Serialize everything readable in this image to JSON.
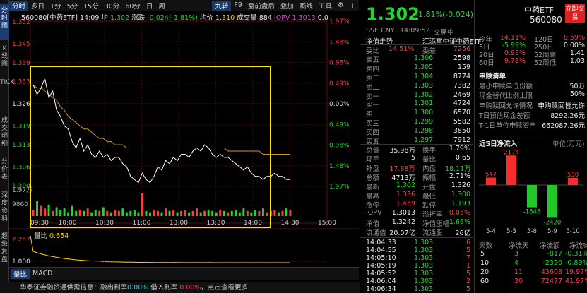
{
  "left_tabs": [
    {
      "label": "分时图",
      "active": true
    },
    {
      "label": "K线图",
      "active": false
    },
    {
      "label": "TICK",
      "active": false
    },
    {
      "label": "成交明细",
      "active": false
    },
    {
      "label": "分价表",
      "active": false
    },
    {
      "label": "深度资料",
      "active": false
    },
    {
      "label": "超级复盘",
      "active": false
    }
  ],
  "toolbar": {
    "periods": [
      "分时",
      "多日",
      "1分",
      "5分",
      "15分",
      "30分",
      "60分",
      "日",
      "周"
    ],
    "right_items": [
      "九转",
      "F9",
      "盘前盘后",
      "叠加",
      "画线",
      "工具"
    ],
    "icons": [
      "settings-icon",
      "plus-icon"
    ]
  },
  "chart_header": {
    "code": "560080[中药ETF]",
    "time": "14:09",
    "price_label": "均",
    "price": "1.302",
    "change_label": "涨跌",
    "change": "-0.024(-1.81%)",
    "avg_label": "均价",
    "avg": "1.310",
    "vol_label": "成交量",
    "vol": "884",
    "iopv_label": "IOPV",
    "iopv": "1.3013",
    "iopv_change": "0.0"
  },
  "chart_data": {
    "type": "line",
    "x_ticks": [
      "09:30",
      "10:00",
      "10:30",
      "11:00",
      "13:00",
      "13:30",
      "14:00",
      "14:30",
      "15:00"
    ],
    "y_ticks_left": [
      "1.352",
      "1.345",
      "1.339",
      "1.333",
      "1.326",
      "1.319",
      "1.313",
      "1.306",
      "1.300",
      "1.97万",
      "9860"
    ],
    "y_ticks_right": [
      "1.97%",
      "1.48%",
      "0.98%",
      "0.49%",
      "0.00%",
      "0.49%",
      "0.98%",
      "1.48%",
      "1.97%"
    ],
    "ylim": [
      1.2998,
      1.3522
    ],
    "prev_close": 1.326,
    "price_series": [
      1.332,
      1.329,
      1.331,
      1.334,
      1.328,
      1.33,
      1.324,
      1.322,
      1.319,
      1.318,
      1.314,
      1.312,
      1.315,
      1.311,
      1.313,
      1.31,
      1.309,
      1.311,
      1.309,
      1.31,
      1.308,
      1.309,
      1.309,
      1.307,
      1.306,
      1.303,
      1.302,
      1.301,
      1.304,
      1.302,
      1.301,
      1.303,
      1.306,
      1.305,
      1.308,
      1.307,
      1.309,
      1.308,
      1.31,
      1.31,
      1.309,
      1.311,
      1.312,
      1.311,
      1.313,
      1.312,
      1.31,
      1.309,
      1.31,
      1.309,
      1.309,
      1.308,
      1.307,
      1.306,
      1.305,
      1.306,
      1.304,
      1.303,
      1.303,
      1.302,
      1.303,
      1.303,
      1.304,
      1.303,
      1.303,
      1.302,
      1.302
    ],
    "avg_series": [
      1.332,
      1.331,
      1.331,
      1.33,
      1.329,
      1.328,
      1.327,
      1.325,
      1.324,
      1.322,
      1.321,
      1.32,
      1.319,
      1.318,
      1.318,
      1.317,
      1.316,
      1.315,
      1.315,
      1.314,
      1.314,
      1.313,
      1.313,
      1.313,
      1.312,
      1.312,
      1.312,
      1.312,
      1.312,
      1.312,
      1.312,
      1.312,
      1.312,
      1.312,
      1.312,
      1.312,
      1.312,
      1.312,
      1.312,
      1.312,
      1.312,
      1.312,
      1.312,
      1.312,
      1.312,
      1.312,
      1.312,
      1.312,
      1.312,
      1.312,
      1.311,
      1.311,
      1.311,
      1.311,
      1.311,
      1.311,
      1.311,
      1.311,
      1.311,
      1.31,
      1.31,
      1.31,
      1.31,
      1.31,
      1.31,
      1.31,
      1.31
    ],
    "volume_series": [
      5,
      12,
      8,
      6,
      9,
      4,
      7,
      5,
      6,
      3,
      8,
      4,
      5,
      4,
      6,
      3,
      5,
      4,
      7,
      4,
      3,
      5,
      4,
      6,
      3,
      4,
      5,
      3,
      18,
      4,
      3,
      5,
      4,
      3,
      6,
      4,
      5,
      3,
      4,
      5,
      3,
      4,
      6,
      3,
      4,
      5,
      4,
      3,
      5,
      4,
      3,
      4,
      5,
      3,
      6,
      4,
      3,
      5,
      4,
      6,
      3,
      4,
      5,
      3,
      4,
      6,
      5
    ],
    "macd_vol_label": "量比",
    "macd_vol_value": "0.654",
    "indicator_y_ticks": [
      "2.257",
      "1.000"
    ],
    "bottom_tabs": [
      "量比",
      "MACD"
    ]
  },
  "quote": {
    "price": "1.302",
    "change_pct": "-1.81%",
    "change": "(-0.024)",
    "name": "中药ETF",
    "code": "560080",
    "stock_btn": "立即交易",
    "exchange": "SSE CNY",
    "time": "14:09:52",
    "status": "交易中",
    "right_stats": [
      {
        "label": "今年",
        "value": "14.11%",
        "label2": "120日",
        "value2": "8.59%",
        "c1": "red",
        "c2": "red"
      },
      {
        "label": "5日",
        "value": "-5.99%",
        "label2": "250日",
        "value2": "0.00%",
        "c1": "green",
        "c2": "white"
      },
      {
        "label": "20日",
        "value": "0.93%",
        "label2": "52周高",
        "value2": "1.41",
        "c1": "red",
        "c2": "white"
      },
      {
        "label": "60日",
        "value": "9.78%",
        "label2": "52周低",
        "value2": "1.03",
        "c1": "red",
        "c2": "white"
      }
    ]
  },
  "net_trend": {
    "label": "净值走势",
    "fund_label": "汇添富中证中药ETF"
  },
  "order_book": {
    "weibi_label": "委比",
    "weibi": "14.51%",
    "weicha_label": "委差",
    "weicha": "7256",
    "asks": [
      {
        "label": "卖五",
        "price": "1.306",
        "vol": "2598"
      },
      {
        "label": "卖四",
        "price": "1.305",
        "vol": "159"
      },
      {
        "label": "卖三",
        "price": "1.304",
        "vol": "8774"
      },
      {
        "label": "卖二",
        "price": "1.303",
        "vol": "7382"
      },
      {
        "label": "卖一",
        "price": "1.302",
        "vol": "2469"
      }
    ],
    "bids": [
      {
        "label": "买一",
        "price": "1.301",
        "vol": "4724"
      },
      {
        "label": "买二",
        "price": "1.300",
        "vol": "6570"
      },
      {
        "label": "买三",
        "price": "1.299",
        "vol": "5582"
      },
      {
        "label": "买四",
        "price": "1.298",
        "vol": "3850"
      },
      {
        "label": "买五",
        "price": "1.297",
        "vol": "7912"
      }
    ]
  },
  "stats": [
    {
      "l1": "总量",
      "v1": "35.98万",
      "c1": "white",
      "l2": "换手",
      "v2": "1.79%",
      "c2": "white"
    },
    {
      "l1": "现手",
      "v1": "5",
      "c1": "white",
      "l2": "量比",
      "v2": "0.65",
      "c2": "white"
    },
    {
      "l1": "外盘",
      "v1": "17.88万",
      "c1": "red",
      "l2": "内盘",
      "v2": "18.11万",
      "c2": "green"
    },
    {
      "l1": "总额",
      "v1": "4713万",
      "c1": "white",
      "l2": "振幅",
      "v2": "2.71%",
      "c2": "white"
    },
    {
      "l1": "最新",
      "v1": "1.302",
      "c1": "green",
      "l2": "开盘",
      "v2": "1.326",
      "c2": "white"
    },
    {
      "l1": "最高",
      "v1": "1.336",
      "c1": "red",
      "l2": "最低",
      "v2": "1.300",
      "c2": "green"
    },
    {
      "l1": "涨停",
      "v1": "1.459",
      "c1": "red",
      "l2": "跌停",
      "v2": "1.193",
      "c2": "green"
    },
    {
      "l1": "IOPV",
      "v1": "1.3013",
      "c1": "white",
      "l2": "溢折率",
      "v2": "0.05%",
      "c2": "red"
    },
    {
      "l1": "净值",
      "v1": "1.3242",
      "c1": "white",
      "l2": "净值涨幅",
      "v2": "-1.68%",
      "c2": "green"
    },
    {
      "l1": "流通值",
      "v1": "20.07亿",
      "c1": "white",
      "l2": "流通股",
      "v2": "26亿",
      "c2": "white"
    }
  ],
  "ticks": [
    {
      "time": "14:04:33",
      "price": "1.303",
      "vol": "6"
    },
    {
      "time": "14:04:55",
      "price": "1.303",
      "vol": "5"
    },
    {
      "time": "14:05:10",
      "price": "1.303",
      "vol": "7"
    },
    {
      "time": "14:05:19",
      "price": "1.303",
      "vol": "1"
    },
    {
      "time": "14:05:52",
      "price": "1.303",
      "vol": "5"
    },
    {
      "time": "14:06:04",
      "price": "1.303",
      "vol": "2"
    },
    {
      "time": "14:06:34",
      "price": "1.303",
      "vol": "5"
    }
  ],
  "subscribe": {
    "title": "申赎清单",
    "rows": [
      {
        "label": "最小申赎单位份额",
        "value": "50万"
      },
      {
        "label": "现金替代比例上限",
        "value": "50%"
      },
      {
        "label": "申购赎回允许情况",
        "value": "申购赎回皆允许"
      },
      {
        "label": "T日预估现金差额",
        "value": "8292.26元"
      },
      {
        "label": "T-1日单位申赎资产",
        "value": "662087.26元"
      }
    ]
  },
  "flow5": {
    "title": "近5日净流入",
    "unit": "单位(万元)",
    "days": [
      "5-4",
      "5-5",
      "5-8",
      "5-9",
      "5-10"
    ],
    "values": [
      547,
      2174,
      -1648,
      -2420,
      530
    ],
    "labels": [
      "547",
      "2174",
      "-1648",
      "-2420",
      "530"
    ]
  },
  "flow_table": {
    "headers": [
      "天数",
      "净流天",
      "净流额",
      "净流%"
    ],
    "rows": [
      {
        "d": "5",
        "n": "3",
        "amt": "-817",
        "pct": "-0.31%",
        "c": "green"
      },
      {
        "d": "10",
        "n": "4",
        "amt": "-2320",
        "pct": "-0.89%",
        "c": "green"
      },
      {
        "d": "20",
        "n": "11",
        "amt": "43608",
        "pct": "19.97%",
        "c": "red"
      },
      {
        "d": "60",
        "n": "30",
        "amt": "72477",
        "pct": "41.97%",
        "c": "red"
      }
    ]
  },
  "status_bar": {
    "text1": "华泰证券融资通供需信息：融出利率",
    "rate1": "0.00%",
    "text2": "借入利率",
    "rate2": "0.00%",
    "text3": "，点击查看更多"
  },
  "colors": {
    "up": "#ff3b3b",
    "down": "#23d32e",
    "avg": "#ffd400",
    "price": "#ffffff",
    "highlight_box": "#ffe600"
  }
}
